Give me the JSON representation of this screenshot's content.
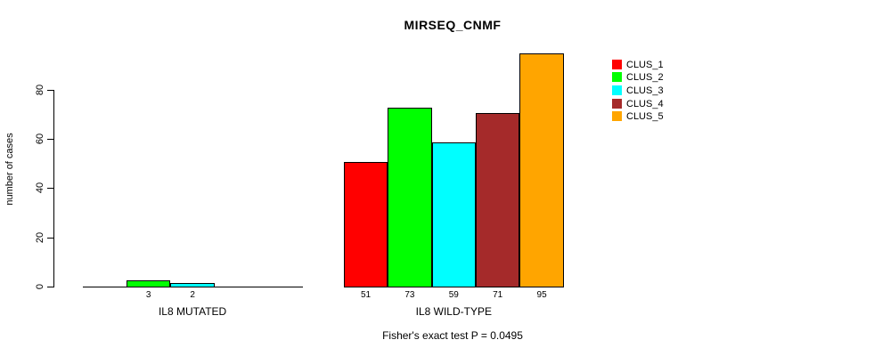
{
  "chart_data": {
    "type": "bar",
    "title": "MIRSEQ_CNMF",
    "ylabel": "number of cases",
    "xlabel": "",
    "footer": "Fisher's exact test P = 0.0495",
    "groups": [
      "IL8 MUTATED",
      "IL8 WILD-TYPE"
    ],
    "series": [
      {
        "name": "CLUS_1",
        "color": "#FF0000",
        "values": [
          0,
          51
        ]
      },
      {
        "name": "CLUS_2",
        "color": "#00FF00",
        "values": [
          3,
          73
        ]
      },
      {
        "name": "CLUS_3",
        "color": "#00FFFF",
        "values": [
          2,
          59
        ]
      },
      {
        "name": "CLUS_4",
        "color": "#A52A2A",
        "values": [
          0,
          71
        ]
      },
      {
        "name": "CLUS_5",
        "color": "#FFA500",
        "values": [
          0,
          95
        ]
      }
    ],
    "bar_value_labels": [
      [
        null,
        3,
        2,
        null,
        null
      ],
      [
        51,
        73,
        59,
        71,
        95
      ]
    ],
    "yticks": [
      0,
      20,
      40,
      60,
      80
    ],
    "ylim": [
      0,
      95
    ],
    "grid": false,
    "legend_position": "right"
  }
}
